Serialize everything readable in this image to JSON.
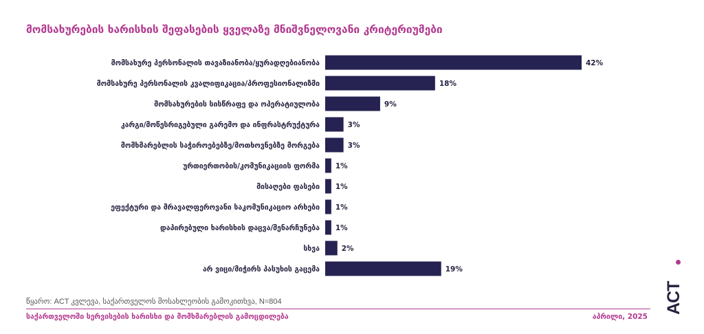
{
  "title": "მომსახურების ხარისხის შეფასების ყველაზე მნიშვნელოვანი კრიტერიუმები",
  "chart_data": {
    "type": "bar",
    "orientation": "horizontal",
    "categories": [
      "მომსახურე პერსონალის თავაზიანობა/ყურადღებიანობა",
      "მომსახურე პერსონალის კვალიფიკაცია/პროფესიონალიზმი",
      "მომსახურების სისწრაფე და ოპერატიულობა",
      "კარგი/მოწესრიგებული გარემო და ინფრასტრუქტურა",
      "მომხმარებლის საჭიროებებზე/მოთხოვნებზე მორგება",
      "ურთიერთობის/კომუნიკაციის ფორმა",
      "მისაღები ფასები",
      "ეფექტური და მრავალფეროვანი საკომუნიკაციო არხები",
      "დაპირებული ხარისხის დაცვა/შენარჩუნება",
      "სხვა",
      "არ ვიცი/მიჭირს პასუხის გაცემა"
    ],
    "values": [
      42,
      18,
      9,
      3,
      3,
      1,
      1,
      1,
      1,
      2,
      19
    ],
    "value_labels": [
      "42%",
      "18%",
      "9%",
      "3%",
      "3%",
      "1%",
      "1%",
      "1%",
      "1%",
      "2%",
      "19%"
    ],
    "unit": "%",
    "bar_color": "#262352",
    "grid": false,
    "legend": "none"
  },
  "source": "წყარო: ACT კვლევა, საქართველოს მოსახლეობის გამოკითხვა, N=804",
  "footer": {
    "left": "საქართველოში სერვისების ხარისხი და მომხმარებლის გამოცდილება",
    "right": "აპრილი, 2025"
  },
  "logo": {
    "text": "ACT",
    "accent": "#b2398f"
  },
  "colors": {
    "accent": "#b2398f",
    "bar": "#262352",
    "text": "#262440"
  }
}
